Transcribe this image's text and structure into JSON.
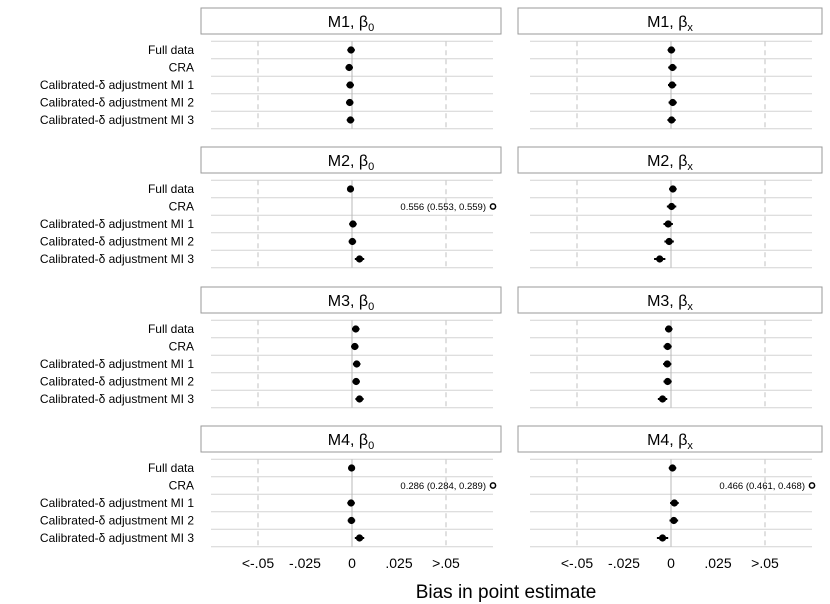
{
  "chart_data": {
    "type": "forest",
    "xlabel": "Bias in point estimate",
    "xlim": [
      -0.075,
      0.075
    ],
    "ticks": [
      {
        "value": -0.05,
        "label": "<-.05"
      },
      {
        "value": -0.025,
        "label": "-.025"
      },
      {
        "value": 0,
        "label": "0"
      },
      {
        "value": 0.025,
        "label": ".025"
      },
      {
        "value": 0.05,
        "label": ">.05"
      }
    ],
    "reference_lines": [
      -0.05,
      0.05
    ],
    "methods": [
      "Full data",
      "CRA",
      "Calibrated-δ adjustment MI 1",
      "Calibrated-δ adjustment MI 2",
      "Calibrated-δ adjustment MI 3"
    ],
    "panels": [
      {
        "model": "M1",
        "param": "0",
        "estimates": [
          {
            "est": -0.0005,
            "lo": -0.0025,
            "hi": 0.0015
          },
          {
            "est": -0.0015,
            "lo": -0.0035,
            "hi": 0.0005
          },
          {
            "est": -0.001,
            "lo": -0.003,
            "hi": 0.001
          },
          {
            "est": -0.0012,
            "lo": -0.0032,
            "hi": 0.0008
          },
          {
            "est": -0.0008,
            "lo": -0.0028,
            "hi": 0.0012
          }
        ]
      },
      {
        "model": "M1",
        "param": "x",
        "estimates": [
          {
            "est": 0.0002,
            "lo": -0.0018,
            "hi": 0.0022
          },
          {
            "est": 0.0008,
            "lo": -0.0015,
            "hi": 0.003
          },
          {
            "est": 0.0006,
            "lo": -0.0016,
            "hi": 0.0028
          },
          {
            "est": 0.0009,
            "lo": -0.0013,
            "hi": 0.0031
          },
          {
            "est": 0.0003,
            "lo": -0.0019,
            "hi": 0.0025
          }
        ]
      },
      {
        "model": "M2",
        "param": "0",
        "estimates": [
          {
            "est": -0.0008,
            "lo": -0.0025,
            "hi": 0.001
          },
          {
            "est": 0.556,
            "lo": 0.553,
            "hi": 0.559,
            "outlier": true,
            "label": "0.556 (0.553, 0.559)"
          },
          {
            "est": 0.0005,
            "lo": -0.0015,
            "hi": 0.0025
          },
          {
            "est": 0.0002,
            "lo": -0.0018,
            "hi": 0.0022
          },
          {
            "est": 0.004,
            "lo": 0.0015,
            "hi": 0.0065
          }
        ]
      },
      {
        "model": "M2",
        "param": "x",
        "estimates": [
          {
            "est": 0.001,
            "lo": -0.001,
            "hi": 0.003
          },
          {
            "est": 0.0003,
            "lo": -0.0022,
            "hi": 0.0028
          },
          {
            "est": -0.0015,
            "lo": -0.004,
            "hi": 0.001
          },
          {
            "est": -0.001,
            "lo": -0.0035,
            "hi": 0.0015
          },
          {
            "est": -0.006,
            "lo": -0.009,
            "hi": -0.003
          }
        ]
      },
      {
        "model": "M3",
        "param": "0",
        "estimates": [
          {
            "est": 0.002,
            "lo": 0.0,
            "hi": 0.004
          },
          {
            "est": 0.0015,
            "lo": -0.0005,
            "hi": 0.0035
          },
          {
            "est": 0.0025,
            "lo": 0.0005,
            "hi": 0.0045
          },
          {
            "est": 0.0022,
            "lo": 0.0002,
            "hi": 0.0042
          },
          {
            "est": 0.004,
            "lo": 0.0018,
            "hi": 0.0062
          }
        ]
      },
      {
        "model": "M3",
        "param": "x",
        "estimates": [
          {
            "est": -0.0012,
            "lo": -0.0032,
            "hi": 0.0008
          },
          {
            "est": -0.0018,
            "lo": -0.004,
            "hi": 0.0004
          },
          {
            "est": -0.002,
            "lo": -0.0042,
            "hi": 0.0002
          },
          {
            "est": -0.0018,
            "lo": -0.004,
            "hi": 0.0004
          },
          {
            "est": -0.0045,
            "lo": -0.007,
            "hi": -0.002
          }
        ]
      },
      {
        "model": "M4",
        "param": "0",
        "estimates": [
          {
            "est": -0.0002,
            "lo": -0.002,
            "hi": 0.0016
          },
          {
            "est": 0.286,
            "lo": 0.284,
            "hi": 0.289,
            "outlier": true,
            "label": "0.286 (0.284, 0.289)"
          },
          {
            "est": -0.0005,
            "lo": -0.0025,
            "hi": 0.0015
          },
          {
            "est": -0.0003,
            "lo": -0.0023,
            "hi": 0.0017
          },
          {
            "est": 0.004,
            "lo": 0.0015,
            "hi": 0.0065
          }
        ]
      },
      {
        "model": "M4",
        "param": "x",
        "estimates": [
          {
            "est": 0.0008,
            "lo": -0.0012,
            "hi": 0.0028
          },
          {
            "est": 0.466,
            "lo": 0.461,
            "hi": 0.468,
            "outlier": true,
            "label": "0.466 (0.461, 0.468)"
          },
          {
            "est": 0.0018,
            "lo": -0.0005,
            "hi": 0.0041
          },
          {
            "est": 0.0015,
            "lo": -0.0008,
            "hi": 0.0038
          },
          {
            "est": -0.0045,
            "lo": -0.0075,
            "hi": -0.0015
          }
        ]
      }
    ]
  }
}
